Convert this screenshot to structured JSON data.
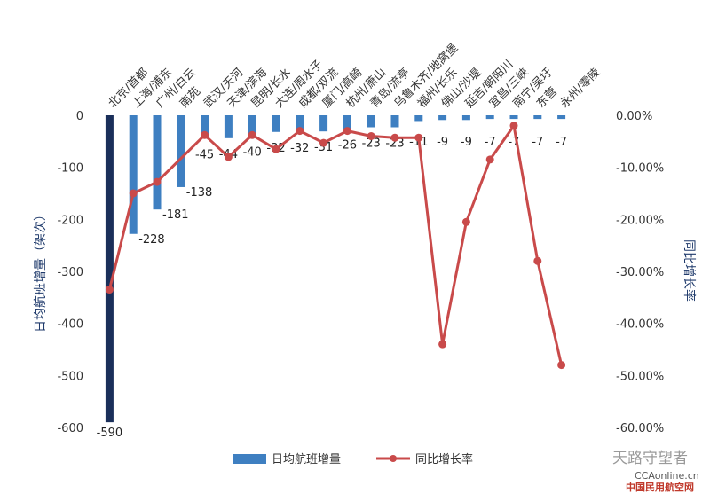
{
  "chart_data": {
    "type": "bar+line",
    "categories": [
      "北京/首都",
      "上海/浦东",
      "广州/白云",
      "南苑",
      "武汉/天河",
      "天津/滨海",
      "昆明/长水",
      "大连/周水子",
      "成都/双流",
      "厦门/高崎",
      "杭州/萧山",
      "青岛/流亭",
      "乌鲁木齐/地窝堡",
      "福州/长乐",
      "佛山/沙堤",
      "延吉/朝阳川",
      "宜昌/三峡",
      "南宁/吴圩",
      "东营",
      "永州/零陵"
    ],
    "series": [
      {
        "name": "日均航班增量",
        "type": "bar",
        "axis": "left",
        "values": [
          -590,
          -228,
          -181,
          -138,
          -45,
          -44,
          -40,
          -32,
          -32,
          -31,
          -26,
          -23,
          -23,
          -11,
          -9,
          -9,
          -7,
          -7,
          -7,
          -7
        ],
        "labels": [
          "-590",
          "-228",
          "-181",
          "-138",
          "-45",
          "-44",
          "-40",
          "-32",
          "-32",
          "-31",
          "-26",
          "-23",
          "-23",
          "-11",
          "-9",
          "-9",
          "-7",
          "-7",
          "-7",
          "-7"
        ]
      },
      {
        "name": "同比增长率",
        "type": "line",
        "axis": "right",
        "values": [
          -33.5,
          -15.0,
          -12.8,
          null,
          -3.8,
          -8.0,
          -3.8,
          -6.5,
          -3.0,
          -5.3,
          -3.0,
          -4.0,
          -4.3,
          -4.3,
          -44.0,
          -20.5,
          -8.5,
          -2.0,
          -28.0,
          -48.0
        ]
      }
    ],
    "ylabel_left": "日均航班增量（架次）",
    "ylabel_right": "同比增长率",
    "ylim_left": [
      -600,
      0
    ],
    "ylim_right": [
      -60,
      0
    ],
    "yticks_left": [
      "0",
      "-100",
      "-200",
      "-300",
      "-400",
      "-500",
      "-600"
    ],
    "yticks_right": [
      "0.00%",
      "-10.00%",
      "-20.00%",
      "-30.00%",
      "-40.00%",
      "-50.00%",
      "-60.00%"
    ],
    "legend_position": "bottom",
    "colors": {
      "bar": "#3e7fc1",
      "bar_first": "#1a2f5a",
      "line": "#c94a4a"
    }
  },
  "watermark": {
    "text1": "天路守望者",
    "text2": "CCAonline.cn",
    "text3": "中国民用航空网"
  }
}
